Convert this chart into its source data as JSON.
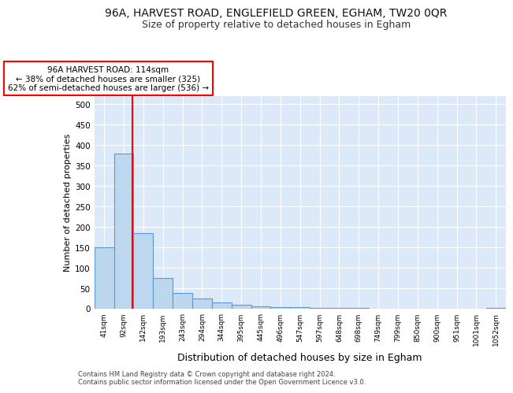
{
  "title": "96A, HARVEST ROAD, ENGLEFIELD GREEN, EGHAM, TW20 0QR",
  "subtitle": "Size of property relative to detached houses in Egham",
  "xlabel": "Distribution of detached houses by size in Egham",
  "ylabel": "Number of detached properties",
  "categories": [
    "41sqm",
    "92sqm",
    "142sqm",
    "193sqm",
    "243sqm",
    "294sqm",
    "344sqm",
    "395sqm",
    "445sqm",
    "496sqm",
    "547sqm",
    "597sqm",
    "648sqm",
    "698sqm",
    "749sqm",
    "799sqm",
    "850sqm",
    "900sqm",
    "951sqm",
    "1001sqm",
    "1052sqm"
  ],
  "values": [
    150,
    378,
    183,
    75,
    38,
    25,
    15,
    8,
    5,
    3,
    2,
    1,
    1,
    1,
    0,
    0,
    0,
    0,
    0,
    0,
    1
  ],
  "bar_color": "#bdd7ee",
  "bar_edge_color": "#5b9bd5",
  "red_line_x": 1.44,
  "annotation_title": "96A HARVEST ROAD: 114sqm",
  "annotation_line1": "← 38% of detached houses are smaller (325)",
  "annotation_line2": "62% of semi-detached houses are larger (536) →",
  "ylim": [
    0,
    520
  ],
  "yticks": [
    0,
    50,
    100,
    150,
    200,
    250,
    300,
    350,
    400,
    450,
    500
  ],
  "footer_line1": "Contains HM Land Registry data © Crown copyright and database right 2024.",
  "footer_line2": "Contains public sector information licensed under the Open Government Licence v3.0.",
  "bg_color": "#dce9f8",
  "grid_color": "#ffffff",
  "title_fontsize": 10,
  "subtitle_fontsize": 9,
  "tick_fontsize": 7.5,
  "xlabel_fontsize": 9,
  "ylabel_fontsize": 8
}
